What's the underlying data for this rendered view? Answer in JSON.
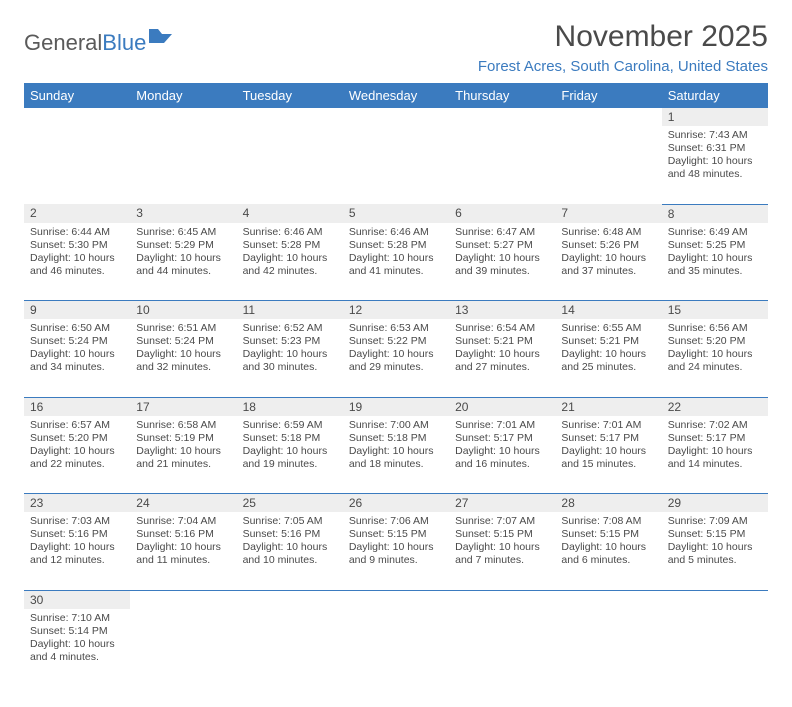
{
  "logo": {
    "text1": "General",
    "text2": "Blue"
  },
  "title": "November 2025",
  "subtitle": "Forest Acres, South Carolina, United States",
  "colors": {
    "header_bg": "#3b7bbf",
    "header_fg": "#ffffff",
    "daynum_bg": "#eeeeee",
    "text": "#4a4a4a",
    "accent": "#3b7bbf"
  },
  "day_headers": [
    "Sunday",
    "Monday",
    "Tuesday",
    "Wednesday",
    "Thursday",
    "Friday",
    "Saturday"
  ],
  "weeks": [
    [
      null,
      null,
      null,
      null,
      null,
      null,
      {
        "n": "1",
        "sr": "7:43 AM",
        "ss": "6:31 PM",
        "dl": "10 hours and 48 minutes."
      }
    ],
    [
      {
        "n": "2",
        "sr": "6:44 AM",
        "ss": "5:30 PM",
        "dl": "10 hours and 46 minutes."
      },
      {
        "n": "3",
        "sr": "6:45 AM",
        "ss": "5:29 PM",
        "dl": "10 hours and 44 minutes."
      },
      {
        "n": "4",
        "sr": "6:46 AM",
        "ss": "5:28 PM",
        "dl": "10 hours and 42 minutes."
      },
      {
        "n": "5",
        "sr": "6:46 AM",
        "ss": "5:28 PM",
        "dl": "10 hours and 41 minutes."
      },
      {
        "n": "6",
        "sr": "6:47 AM",
        "ss": "5:27 PM",
        "dl": "10 hours and 39 minutes."
      },
      {
        "n": "7",
        "sr": "6:48 AM",
        "ss": "5:26 PM",
        "dl": "10 hours and 37 minutes."
      },
      {
        "n": "8",
        "sr": "6:49 AM",
        "ss": "5:25 PM",
        "dl": "10 hours and 35 minutes."
      }
    ],
    [
      {
        "n": "9",
        "sr": "6:50 AM",
        "ss": "5:24 PM",
        "dl": "10 hours and 34 minutes."
      },
      {
        "n": "10",
        "sr": "6:51 AM",
        "ss": "5:24 PM",
        "dl": "10 hours and 32 minutes."
      },
      {
        "n": "11",
        "sr": "6:52 AM",
        "ss": "5:23 PM",
        "dl": "10 hours and 30 minutes."
      },
      {
        "n": "12",
        "sr": "6:53 AM",
        "ss": "5:22 PM",
        "dl": "10 hours and 29 minutes."
      },
      {
        "n": "13",
        "sr": "6:54 AM",
        "ss": "5:21 PM",
        "dl": "10 hours and 27 minutes."
      },
      {
        "n": "14",
        "sr": "6:55 AM",
        "ss": "5:21 PM",
        "dl": "10 hours and 25 minutes."
      },
      {
        "n": "15",
        "sr": "6:56 AM",
        "ss": "5:20 PM",
        "dl": "10 hours and 24 minutes."
      }
    ],
    [
      {
        "n": "16",
        "sr": "6:57 AM",
        "ss": "5:20 PM",
        "dl": "10 hours and 22 minutes."
      },
      {
        "n": "17",
        "sr": "6:58 AM",
        "ss": "5:19 PM",
        "dl": "10 hours and 21 minutes."
      },
      {
        "n": "18",
        "sr": "6:59 AM",
        "ss": "5:18 PM",
        "dl": "10 hours and 19 minutes."
      },
      {
        "n": "19",
        "sr": "7:00 AM",
        "ss": "5:18 PM",
        "dl": "10 hours and 18 minutes."
      },
      {
        "n": "20",
        "sr": "7:01 AM",
        "ss": "5:17 PM",
        "dl": "10 hours and 16 minutes."
      },
      {
        "n": "21",
        "sr": "7:01 AM",
        "ss": "5:17 PM",
        "dl": "10 hours and 15 minutes."
      },
      {
        "n": "22",
        "sr": "7:02 AM",
        "ss": "5:17 PM",
        "dl": "10 hours and 14 minutes."
      }
    ],
    [
      {
        "n": "23",
        "sr": "7:03 AM",
        "ss": "5:16 PM",
        "dl": "10 hours and 12 minutes."
      },
      {
        "n": "24",
        "sr": "7:04 AM",
        "ss": "5:16 PM",
        "dl": "10 hours and 11 minutes."
      },
      {
        "n": "25",
        "sr": "7:05 AM",
        "ss": "5:16 PM",
        "dl": "10 hours and 10 minutes."
      },
      {
        "n": "26",
        "sr": "7:06 AM",
        "ss": "5:15 PM",
        "dl": "10 hours and 9 minutes."
      },
      {
        "n": "27",
        "sr": "7:07 AM",
        "ss": "5:15 PM",
        "dl": "10 hours and 7 minutes."
      },
      {
        "n": "28",
        "sr": "7:08 AM",
        "ss": "5:15 PM",
        "dl": "10 hours and 6 minutes."
      },
      {
        "n": "29",
        "sr": "7:09 AM",
        "ss": "5:15 PM",
        "dl": "10 hours and 5 minutes."
      }
    ],
    [
      {
        "n": "30",
        "sr": "7:10 AM",
        "ss": "5:14 PM",
        "dl": "10 hours and 4 minutes."
      },
      null,
      null,
      null,
      null,
      null,
      null
    ]
  ],
  "labels": {
    "sunrise": "Sunrise:",
    "sunset": "Sunset:",
    "daylight": "Daylight:"
  }
}
